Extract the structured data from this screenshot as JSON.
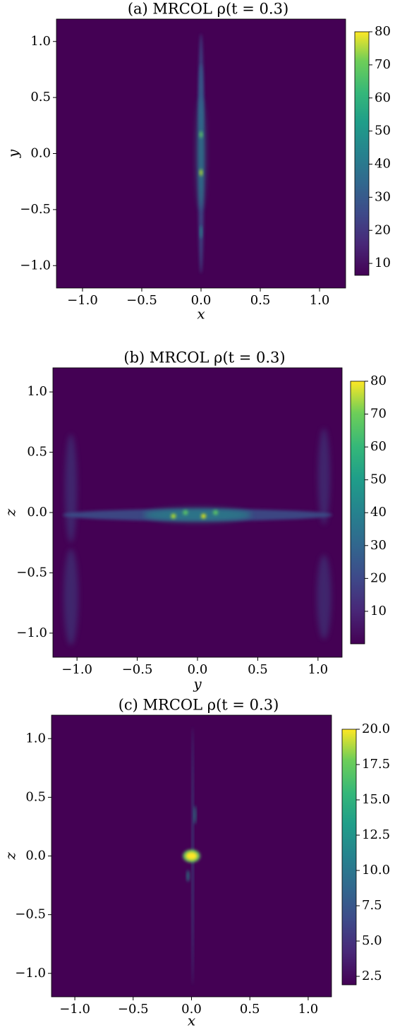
{
  "chart_data": [
    {
      "type": "heatmap",
      "title": "(a) MRCOL ρ(t = 0.3)",
      "xlabel": "x",
      "ylabel": "y",
      "colormap": "viridis",
      "xlim": [
        -1.22,
        1.22
      ],
      "ylim": [
        -1.2,
        1.2
      ],
      "xticks": [
        {
          "value": -1,
          "label": "−1.0"
        },
        {
          "value": -0.5,
          "label": "−0.5"
        },
        {
          "value": 0,
          "label": "0.0"
        },
        0.5,
        {
          "value": 1,
          "label": "1.0"
        }
      ],
      "yticks": [
        {
          "value": -1,
          "label": "−1.0"
        },
        {
          "value": -0.5,
          "label": "−0.5"
        },
        {
          "value": 0,
          "label": "0.0"
        },
        0.5,
        {
          "value": 1,
          "label": "1.0"
        }
      ],
      "clim": [
        6.4,
        80
      ],
      "cticks": [
        10,
        20,
        30,
        40,
        50,
        60,
        70,
        80
      ]
    },
    {
      "type": "heatmap",
      "title": "(b) MRCOL ρ(t = 0.3)",
      "xlabel": "y",
      "ylabel": "z",
      "colormap": "viridis",
      "xlim": [
        -1.2,
        1.2
      ],
      "ylim": [
        -1.2,
        1.2
      ],
      "xticks": [
        {
          "value": -1,
          "label": "−1.0"
        },
        {
          "value": -0.5,
          "label": "−0.5"
        },
        {
          "value": 0,
          "label": "0.0"
        },
        0.5,
        {
          "value": 1,
          "label": "1.0"
        }
      ],
      "yticks": [
        {
          "value": -1,
          "label": "−1.0"
        },
        {
          "value": -0.5,
          "label": "−0.5"
        },
        {
          "value": 0,
          "label": "0.0"
        },
        0.5,
        {
          "value": 1,
          "label": "1.0"
        }
      ],
      "clim": [
        0.1,
        80
      ],
      "cticks": [
        10,
        20,
        30,
        40,
        50,
        60,
        70,
        80
      ]
    },
    {
      "type": "heatmap",
      "title": "(c) MRCOL ρ(t = 0.3)",
      "xlabel": "x",
      "ylabel": "z",
      "colormap": "viridis",
      "xlim": [
        -1.2,
        1.2
      ],
      "ylim": [
        -1.2,
        1.2
      ],
      "xticks": [
        {
          "value": -1,
          "label": "−1.0"
        },
        {
          "value": -0.5,
          "label": "−0.5"
        },
        {
          "value": 0,
          "label": "0.0"
        },
        0.5,
        {
          "value": 1,
          "label": "1.0"
        }
      ],
      "yticks": [
        {
          "value": -1,
          "label": "−1.0"
        },
        {
          "value": -0.5,
          "label": "−0.5"
        },
        {
          "value": 0,
          "label": "0.0"
        },
        0.5,
        {
          "value": 1,
          "label": "1.0"
        }
      ],
      "clim": [
        1.9,
        20
      ],
      "cticks": [
        2.5,
        {
          "value": 5,
          "label": "5.0"
        },
        7.5,
        {
          "value": 10,
          "label": "10.0"
        },
        12.5,
        {
          "value": 15,
          "label": "15.0"
        },
        17.5,
        {
          "value": 20,
          "label": "20.0"
        }
      ]
    }
  ]
}
